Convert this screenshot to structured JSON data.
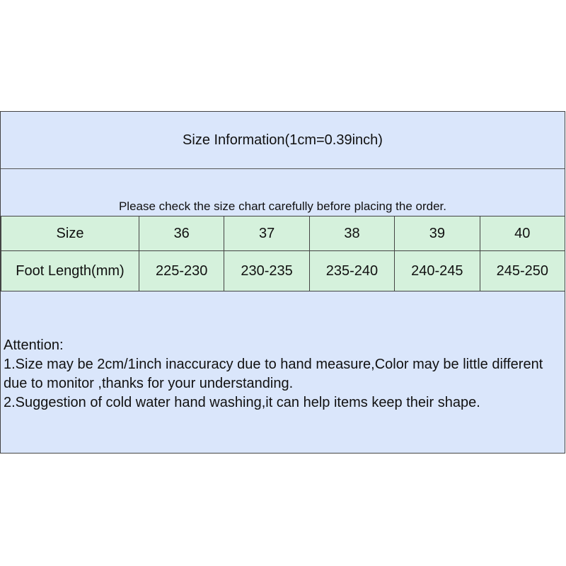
{
  "title": "Size Information(1cm=0.39inch)",
  "note": "Please check the size chart carefully before placing the order.",
  "table": {
    "rows": [
      {
        "label": "Size",
        "values": [
          "36",
          "37",
          "38",
          "39",
          "40"
        ]
      },
      {
        "label": "Foot Length(mm)",
        "values": [
          "225-230",
          "230-235",
          "235-240",
          "240-245",
          "245-250"
        ]
      }
    ]
  },
  "attention": {
    "heading": "Attention:",
    "line1": "1.Size may be 2cm/1inch inaccuracy due to hand measure,Color may be little different due to monitor ,thanks for your understanding.",
    "line2": "2.Suggestion of cold water hand washing,it can help items keep their shape."
  },
  "colors": {
    "header_bg": "#dae6fb",
    "table_bg": "#d5f1dc",
    "border": "#444444"
  }
}
